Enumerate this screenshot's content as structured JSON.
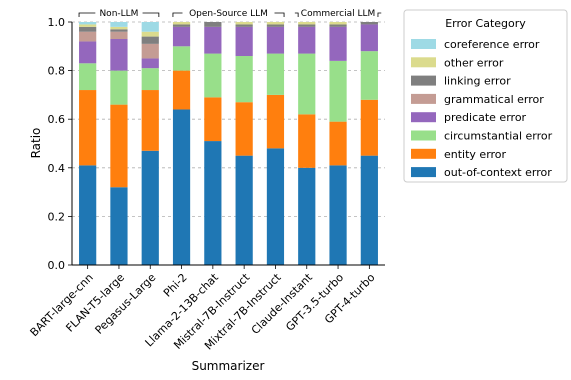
{
  "chart_data": {
    "type": "bar",
    "stacked": true,
    "xlabel": "Summarizer",
    "ylabel": "Ratio",
    "ylim": [
      0,
      1
    ],
    "yticks": [
      "0.0",
      "0.2",
      "0.4",
      "0.6",
      "0.8",
      "1.0"
    ],
    "grid": "horizontal dashed",
    "categories": [
      "BART-large-cnn",
      "FLAN-T5-large",
      "Pegasus-Large",
      "Phi-2",
      "Llama-2-13B-chat",
      "Mistral-7B-Instruct",
      "Mixtral-7B-Instruct",
      "Claude-Instant",
      "GPT-3.5-turbo",
      "GPT-4-turbo"
    ],
    "groups": [
      {
        "label": "Non-LLM",
        "start": 0,
        "end": 2
      },
      {
        "label": "Open-Source LLM",
        "start": 3,
        "end": 6
      },
      {
        "label": "Commercial LLM",
        "start": 7,
        "end": 9
      }
    ],
    "legend": {
      "title": "Error Category",
      "position": "outside right, upper"
    },
    "series": [
      {
        "name": "out-of-context error",
        "color": "#1f77b4",
        "values": [
          0.41,
          0.32,
          0.47,
          0.64,
          0.51,
          0.45,
          0.48,
          0.4,
          0.41,
          0.45
        ]
      },
      {
        "name": "entity error",
        "color": "#ff7f0e",
        "values": [
          0.31,
          0.34,
          0.25,
          0.16,
          0.18,
          0.22,
          0.22,
          0.22,
          0.18,
          0.23
        ]
      },
      {
        "name": "circumstantial error",
        "color": "#98df8a",
        "values": [
          0.11,
          0.14,
          0.09,
          0.1,
          0.18,
          0.19,
          0.17,
          0.25,
          0.25,
          0.2
        ]
      },
      {
        "name": "predicate error",
        "color": "#9467bd",
        "values": [
          0.09,
          0.13,
          0.04,
          0.08,
          0.11,
          0.12,
          0.11,
          0.11,
          0.14,
          0.11
        ]
      },
      {
        "name": "grammatical error",
        "color": "#c49c94",
        "values": [
          0.04,
          0.03,
          0.06,
          0.0,
          0.0,
          0.0,
          0.0,
          0.0,
          0.0,
          0.0
        ]
      },
      {
        "name": "linking error",
        "color": "#7f7f7f",
        "values": [
          0.02,
          0.01,
          0.03,
          0.01,
          0.02,
          0.01,
          0.01,
          0.01,
          0.01,
          0.01
        ]
      },
      {
        "name": "other error",
        "color": "#dbdb8d",
        "values": [
          0.01,
          0.01,
          0.02,
          0.01,
          0.0,
          0.01,
          0.01,
          0.01,
          0.01,
          0.0
        ]
      },
      {
        "name": "coreference error",
        "color": "#9edae5",
        "values": [
          0.01,
          0.02,
          0.04,
          0.0,
          0.0,
          0.0,
          0.0,
          0.0,
          0.0,
          0.0
        ]
      }
    ]
  }
}
